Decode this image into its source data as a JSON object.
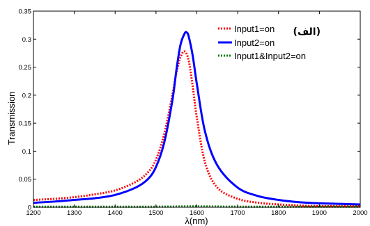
{
  "chart_data": {
    "type": "line",
    "title": "",
    "panel_label": "(الف)",
    "xlabel": "λ(nm)",
    "ylabel": "Transmission",
    "xlim": [
      1200,
      2000
    ],
    "ylim": [
      0,
      0.35
    ],
    "xticks": [
      1200,
      1300,
      1400,
      1500,
      1600,
      1700,
      1800,
      1900,
      2000
    ],
    "yticks": [
      0,
      0.05,
      0.1,
      0.15,
      0.2,
      0.25,
      0.3,
      0.35
    ],
    "ytick_labels": [
      "0",
      "0.05",
      "0.1",
      "0.15",
      "0.2",
      "0.25",
      "0.3",
      "0.35"
    ],
    "grid": false,
    "legend_position": "top-right",
    "series": [
      {
        "name": "Input1=on",
        "color": "#ff0000",
        "style": "dotted",
        "x": [
          1200,
          1250,
          1300,
          1350,
          1400,
          1450,
          1480,
          1500,
          1520,
          1540,
          1550,
          1560,
          1570,
          1580,
          1590,
          1600,
          1620,
          1650,
          1700,
          1750,
          1800,
          1850,
          1900,
          1950,
          2000
        ],
        "y": [
          0.013,
          0.015,
          0.018,
          0.023,
          0.03,
          0.045,
          0.062,
          0.085,
          0.13,
          0.2,
          0.24,
          0.268,
          0.278,
          0.262,
          0.215,
          0.16,
          0.08,
          0.035,
          0.015,
          0.008,
          0.005,
          0.003,
          0.002,
          0.002,
          0.002
        ]
      },
      {
        "name": "Input2=on",
        "color": "#0000ff",
        "style": "solid",
        "x": [
          1200,
          1250,
          1300,
          1350,
          1400,
          1450,
          1480,
          1500,
          1520,
          1540,
          1550,
          1560,
          1570,
          1575,
          1580,
          1590,
          1600,
          1620,
          1650,
          1700,
          1750,
          1800,
          1850,
          1900,
          1950,
          2000
        ],
        "y": [
          0.008,
          0.01,
          0.013,
          0.016,
          0.022,
          0.035,
          0.05,
          0.072,
          0.115,
          0.19,
          0.245,
          0.29,
          0.31,
          0.312,
          0.305,
          0.27,
          0.22,
          0.135,
          0.075,
          0.035,
          0.02,
          0.013,
          0.009,
          0.007,
          0.006,
          0.005
        ]
      },
      {
        "name": "Input1&Input2=on",
        "color": "#008000",
        "style": "dotted",
        "x": [
          1200,
          1300,
          1400,
          1500,
          1550,
          1575,
          1600,
          1650,
          1700,
          1800,
          1900,
          2000
        ],
        "y": [
          0.001,
          0.001,
          0.001,
          0.001,
          0.0012,
          0.0015,
          0.0015,
          0.0012,
          0.001,
          0.001,
          0.001,
          0.001
        ]
      }
    ]
  }
}
